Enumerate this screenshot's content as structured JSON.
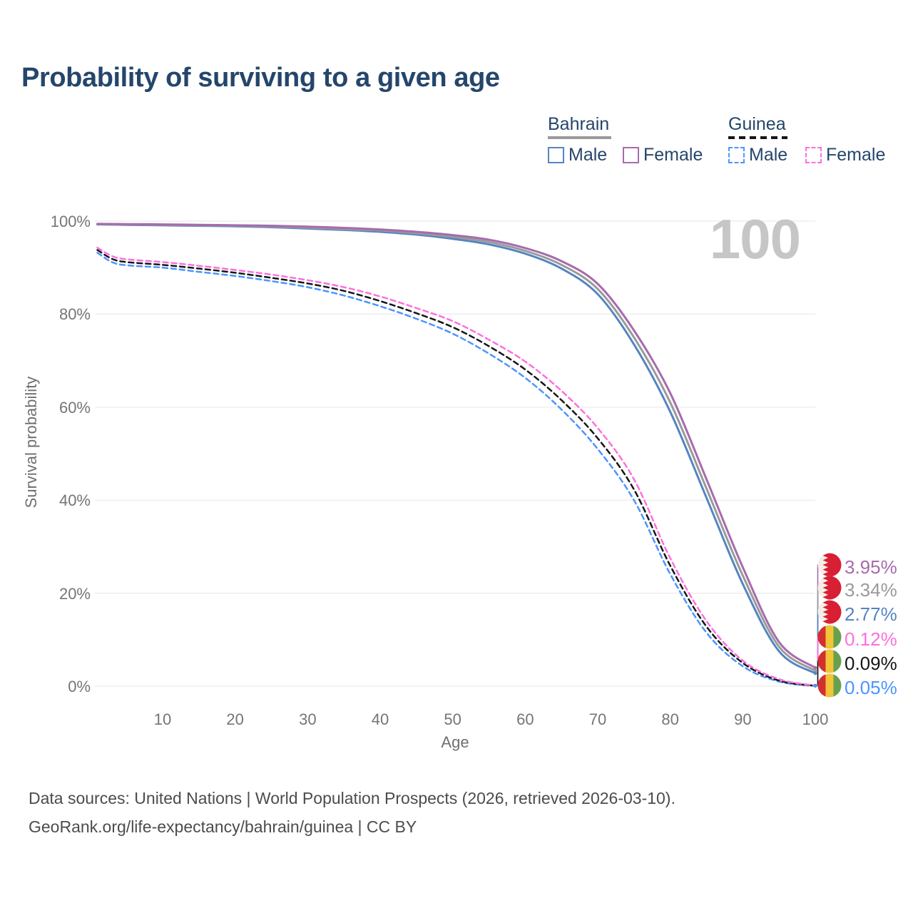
{
  "title": "Probability of surviving to a given age",
  "watermark_age": "100",
  "legend": {
    "groups": [
      {
        "id": "bahrain",
        "label": "Bahrain",
        "line_style": "solid",
        "line_color": "#9a9a9a",
        "items": [
          {
            "label": "Male",
            "color": "#5585c2",
            "dashed": false
          },
          {
            "label": "Female",
            "color": "#a76bac",
            "dashed": false
          }
        ]
      },
      {
        "id": "guinea",
        "label": "Guinea",
        "line_style": "dashed",
        "line_color": "#161616",
        "items": [
          {
            "label": "Male",
            "color": "#4d94ff",
            "dashed": true
          },
          {
            "label": "Female",
            "color": "#fc70dd",
            "dashed": true
          }
        ]
      }
    ]
  },
  "axes": {
    "x": {
      "label": "Age",
      "tick_values": [
        10,
        20,
        30,
        40,
        50,
        60,
        70,
        80,
        90,
        100
      ],
      "tick_labels": [
        "10",
        "20",
        "30",
        "40",
        "50",
        "60",
        "70",
        "80",
        "90",
        "100"
      ]
    },
    "y": {
      "label": "Survival probability",
      "tick_values": [
        100,
        80,
        60,
        40,
        20,
        0
      ],
      "tick_labels": [
        "100%",
        "80%",
        "60%",
        "40%",
        "20%",
        "0%"
      ]
    }
  },
  "end_labels": [
    {
      "text": "3.95%",
      "color": "#a76bac",
      "flag": "bahrain"
    },
    {
      "text": "3.34%",
      "color": "#9a9a9a",
      "flag": "bahrain"
    },
    {
      "text": "2.77%",
      "color": "#5585c2",
      "flag": "bahrain"
    },
    {
      "text": "0.12%",
      "color": "#fc70dd",
      "flag": "guinea"
    },
    {
      "text": "0.09%",
      "color": "#161616",
      "flag": "guinea"
    },
    {
      "text": "0.05%",
      "color": "#4d94ff",
      "flag": "guinea"
    }
  ],
  "footer": {
    "line1": "Data sources: United Nations | World Population Prospects (2026, retrieved 2026-03-10).",
    "line2": "GeoRank.org/life-expectancy/bahrain/guinea | CC BY"
  },
  "chart_data": {
    "type": "line",
    "title": "Probability of surviving to a given age",
    "xlabel": "Age",
    "ylabel": "Survival probability",
    "xlim": [
      0,
      100
    ],
    "ylim": [
      0,
      100
    ],
    "grid": "horizontal",
    "legend_position": "top-right",
    "y_unit": "%",
    "series": [
      {
        "name": "Bahrain Female",
        "style": "solid",
        "color": "#a76bac",
        "end_value_pct": 3.95,
        "points": [
          [
            1,
            99.4
          ],
          [
            5,
            99.35
          ],
          [
            10,
            99.3
          ],
          [
            15,
            99.2
          ],
          [
            20,
            99.1
          ],
          [
            25,
            99.0
          ],
          [
            30,
            98.8
          ],
          [
            35,
            98.55
          ],
          [
            40,
            98.2
          ],
          [
            45,
            97.7
          ],
          [
            50,
            97.0
          ],
          [
            55,
            96.0
          ],
          [
            60,
            94.2
          ],
          [
            65,
            91.4
          ],
          [
            70,
            86.5
          ],
          [
            75,
            76.5
          ],
          [
            80,
            63.0
          ],
          [
            85,
            44.5
          ],
          [
            90,
            25.6
          ],
          [
            95,
            9.5
          ],
          [
            100,
            3.95
          ]
        ]
      },
      {
        "name": "Bahrain Total",
        "style": "solid",
        "color": "#9a9a9a",
        "end_value_pct": 3.34,
        "points": [
          [
            1,
            99.35
          ],
          [
            5,
            99.3
          ],
          [
            10,
            99.2
          ],
          [
            15,
            99.1
          ],
          [
            20,
            99.0
          ],
          [
            25,
            98.85
          ],
          [
            30,
            98.6
          ],
          [
            35,
            98.3
          ],
          [
            40,
            98.0
          ],
          [
            45,
            97.4
          ],
          [
            50,
            96.6
          ],
          [
            55,
            95.5
          ],
          [
            60,
            93.6
          ],
          [
            65,
            90.6
          ],
          [
            70,
            85.4
          ],
          [
            75,
            75.0
          ],
          [
            80,
            61.0
          ],
          [
            85,
            42.5
          ],
          [
            90,
            23.8
          ],
          [
            95,
            8.5
          ],
          [
            100,
            3.34
          ]
        ]
      },
      {
        "name": "Bahrain Male",
        "style": "solid",
        "color": "#5585c2",
        "end_value_pct": 2.77,
        "points": [
          [
            1,
            99.3
          ],
          [
            5,
            99.2
          ],
          [
            10,
            99.1
          ],
          [
            15,
            99.0
          ],
          [
            20,
            98.9
          ],
          [
            25,
            98.7
          ],
          [
            30,
            98.4
          ],
          [
            35,
            98.1
          ],
          [
            40,
            97.7
          ],
          [
            45,
            97.1
          ],
          [
            50,
            96.2
          ],
          [
            55,
            95.0
          ],
          [
            60,
            93.0
          ],
          [
            65,
            89.8
          ],
          [
            70,
            84.3
          ],
          [
            75,
            73.5
          ],
          [
            80,
            59.0
          ],
          [
            85,
            40.5
          ],
          [
            90,
            22.0
          ],
          [
            95,
            7.5
          ],
          [
            100,
            2.77
          ]
        ]
      },
      {
        "name": "Guinea Female",
        "style": "dashed",
        "color": "#fc70dd",
        "end_value_pct": 0.12,
        "points": [
          [
            1,
            94.3
          ],
          [
            3,
            92.5
          ],
          [
            5,
            91.8
          ],
          [
            10,
            91.2
          ],
          [
            15,
            90.4
          ],
          [
            20,
            89.5
          ],
          [
            25,
            88.5
          ],
          [
            30,
            87.3
          ],
          [
            35,
            85.8
          ],
          [
            40,
            83.8
          ],
          [
            45,
            81.3
          ],
          [
            50,
            78.5
          ],
          [
            55,
            74.5
          ],
          [
            60,
            69.8
          ],
          [
            65,
            63.5
          ],
          [
            70,
            55.5
          ],
          [
            75,
            44.5
          ],
          [
            80,
            27.5
          ],
          [
            85,
            14.0
          ],
          [
            90,
            5.5
          ],
          [
            95,
            1.5
          ],
          [
            100,
            0.12
          ]
        ]
      },
      {
        "name": "Guinea Total",
        "style": "dashed",
        "color": "#161616",
        "end_value_pct": 0.09,
        "points": [
          [
            1,
            93.8
          ],
          [
            3,
            91.9
          ],
          [
            5,
            91.2
          ],
          [
            10,
            90.6
          ],
          [
            15,
            89.8
          ],
          [
            20,
            88.9
          ],
          [
            25,
            87.8
          ],
          [
            30,
            86.6
          ],
          [
            35,
            85.0
          ],
          [
            40,
            82.8
          ],
          [
            45,
            80.2
          ],
          [
            50,
            77.2
          ],
          [
            55,
            73.1
          ],
          [
            60,
            68.1
          ],
          [
            65,
            61.5
          ],
          [
            70,
            53.3
          ],
          [
            75,
            42.3
          ],
          [
            80,
            25.9
          ],
          [
            85,
            12.8
          ],
          [
            90,
            5.0
          ],
          [
            95,
            1.2
          ],
          [
            100,
            0.09
          ]
        ]
      },
      {
        "name": "Guinea Male",
        "style": "dashed",
        "color": "#4d94ff",
        "end_value_pct": 0.05,
        "points": [
          [
            1,
            93.2
          ],
          [
            3,
            91.2
          ],
          [
            5,
            90.5
          ],
          [
            10,
            90.0
          ],
          [
            15,
            89.1
          ],
          [
            20,
            88.2
          ],
          [
            25,
            87.1
          ],
          [
            30,
            85.8
          ],
          [
            35,
            84.0
          ],
          [
            40,
            81.7
          ],
          [
            45,
            79.0
          ],
          [
            50,
            75.8
          ],
          [
            55,
            71.5
          ],
          [
            60,
            66.3
          ],
          [
            65,
            59.5
          ],
          [
            70,
            51.0
          ],
          [
            75,
            40.0
          ],
          [
            80,
            24.1
          ],
          [
            85,
            11.5
          ],
          [
            90,
            4.3
          ],
          [
            95,
            1.0
          ],
          [
            100,
            0.05
          ]
        ]
      }
    ],
    "flag_colors": {
      "bahrain_red": "#d81f33",
      "bahrain_white": "#f3efe8",
      "guinea_red": "#d22f2f",
      "guinea_yellow": "#f2c438",
      "guinea_green": "#67a14e"
    }
  }
}
